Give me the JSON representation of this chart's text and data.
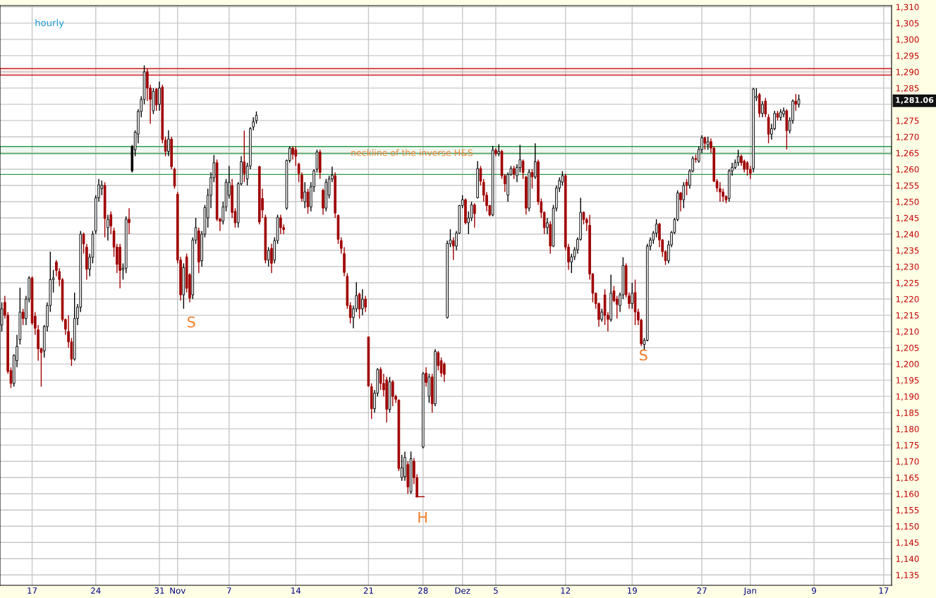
{
  "chart_data": {
    "type": "candlestick",
    "title": "hourly",
    "categories": [
      null,
      null,
      null,
      null,
      null,
      null,
      null,
      null,
      null,
      null,
      "17",
      null,
      null,
      null,
      null,
      null,
      null,
      null,
      null,
      null,
      null,
      null,
      null,
      null,
      null,
      null,
      null,
      null,
      null,
      null,
      null,
      "24",
      null,
      null,
      null,
      null,
      null,
      null,
      null,
      null,
      null,
      null,
      null,
      null,
      null,
      null,
      null,
      null,
      null,
      null,
      null,
      null,
      "31",
      null,
      null,
      null,
      null,
      null,
      "Nov",
      null,
      null,
      null,
      null,
      null,
      null,
      null,
      null,
      null,
      null,
      null,
      null,
      null,
      null,
      null,
      null,
      "7",
      null,
      null,
      null,
      null,
      null,
      null,
      null,
      null,
      null,
      null,
      null,
      null,
      null,
      null,
      null,
      null,
      null,
      null,
      null,
      null,
      null,
      "14",
      null,
      null,
      null,
      null,
      null,
      null,
      null,
      null,
      null,
      null,
      null,
      null,
      null,
      null,
      null,
      null,
      null,
      null,
      null,
      null,
      null,
      null,
      null,
      "21",
      null,
      null,
      null,
      null,
      null,
      null,
      null,
      null,
      null,
      null,
      null,
      null,
      null,
      null,
      null,
      null,
      null,
      "28",
      null,
      null,
      null,
      null,
      null,
      null,
      null,
      null,
      null,
      null,
      null,
      null,
      "Dez",
      null,
      null,
      null,
      null,
      null,
      null,
      null,
      null,
      null,
      null,
      "5",
      null,
      null,
      null,
      null,
      null,
      null,
      null,
      null,
      null,
      null,
      null,
      null,
      null,
      null,
      null,
      null,
      null,
      null,
      null,
      null,
      null,
      null,
      "12",
      null,
      null,
      null,
      null,
      null,
      null,
      null,
      null,
      null,
      null,
      null,
      null,
      null,
      null,
      null,
      null,
      null,
      null,
      null,
      null,
      null,
      "19",
      null,
      null,
      null,
      null,
      null,
      null,
      null,
      null,
      null,
      null,
      null,
      null,
      null,
      null,
      null,
      null,
      null,
      null,
      null,
      null,
      null,
      null,
      "27",
      null,
      null,
      null,
      null,
      null,
      null,
      null,
      null,
      null,
      null,
      null,
      null,
      null,
      null,
      null,
      "Jan",
      null,
      null,
      null,
      null,
      null,
      null,
      null,
      null,
      null,
      null,
      null,
      null,
      null,
      null,
      null,
      null,
      null,
      null,
      null,
      null,
      "9",
      null,
      null,
      null,
      null,
      null,
      null,
      null,
      null,
      null,
      null,
      null,
      null,
      null,
      null,
      null,
      null,
      null,
      null,
      null,
      null,
      null,
      null,
      "17",
      null,
      null
    ],
    "ohlc": [
      [
        1212,
        1219,
        1210,
        1217
      ],
      [
        1219,
        1221,
        1214,
        1215
      ],
      [
        1215,
        1216,
        1197,
        1197.7
      ],
      [
        1198,
        1199,
        1192.6,
        1194
      ],
      [
        1194,
        1203,
        1193,
        1202.6
      ],
      [
        1201,
        1209,
        1199,
        1205.4
      ],
      [
        1207.5,
        1223.5,
        1206,
        1216
      ],
      [
        1216,
        1217,
        1212,
        1214
      ],
      [
        1214,
        1221,
        1212,
        1220
      ],
      [
        1220,
        1227,
        1219,
        1226.5
      ],
      [
        1226.5,
        1227,
        1212,
        1212.6
      ],
      [
        1214.7,
        1216,
        1209,
        1211
      ],
      [
        1210.5,
        1212,
        1201,
        1204.7
      ],
      [
        1204.7,
        1205,
        1193,
        1203.5
      ],
      [
        1204,
        1212,
        1202,
        1211.5
      ],
      [
        1211.5,
        1219,
        1210,
        1218
      ],
      [
        1218,
        1234.6,
        1216,
        1226
      ],
      [
        1226,
        1229,
        1222,
        1226.5
      ],
      [
        1231.4,
        1232,
        1227,
        1228.8
      ],
      [
        1228.5,
        1229.5,
        1224,
        1226
      ],
      [
        1226,
        1226.5,
        1213,
        1213.7
      ],
      [
        1213.7,
        1214,
        1209,
        1210.7
      ],
      [
        1210,
        1215,
        1205,
        1206.8
      ],
      [
        1206.8,
        1208,
        1199.4,
        1201.5
      ],
      [
        1201.5,
        1222,
        1201,
        1214
      ],
      [
        1214,
        1218.5,
        1212,
        1217.5
      ],
      [
        1217.5,
        1241,
        1216,
        1240
      ],
      [
        1240,
        1240.5,
        1234,
        1237
      ],
      [
        1236,
        1237,
        1226,
        1229.2
      ],
      [
        1229.2,
        1234,
        1227,
        1232.9
      ],
      [
        1232.9,
        1241,
        1231,
        1240
      ],
      [
        1241,
        1252,
        1240,
        1251.2
      ],
      [
        1251.2,
        1257,
        1250,
        1255.2
      ],
      [
        1254,
        1256.5,
        1252,
        1255
      ],
      [
        1255,
        1256,
        1239,
        1244.8
      ],
      [
        1242,
        1246,
        1238,
        1244.5
      ],
      [
        1246,
        1247,
        1240,
        1242.5
      ],
      [
        1241,
        1242,
        1233,
        1236
      ],
      [
        1236,
        1237,
        1228,
        1230.7
      ],
      [
        1236,
        1237,
        1223.3,
        1228.8
      ],
      [
        1229,
        1231,
        1226,
        1229.5
      ],
      [
        1229.5,
        1245.5,
        1228,
        1244.6
      ],
      [
        1244.6,
        1248,
        1240,
        1243.5
      ],
      [
        1259.5,
        1267.5,
        1259,
        1267
      ],
      [
        1266,
        1272,
        1264,
        1271.4
      ],
      [
        1270.8,
        1278.5,
        1268,
        1277.8
      ],
      [
        1277.8,
        1282.5,
        1276,
        1281.5
      ],
      [
        1281.5,
        1292,
        1280,
        1290
      ],
      [
        1290,
        1291,
        1281,
        1285
      ],
      [
        1285,
        1286,
        1274,
        1281.5
      ],
      [
        1278,
        1285,
        1277,
        1284
      ],
      [
        1284.7,
        1285,
        1278,
        1279.8
      ],
      [
        1280,
        1287,
        1278,
        1285
      ],
      [
        1285.3,
        1286,
        1268,
        1269.1
      ],
      [
        1269,
        1270,
        1264,
        1265.5
      ],
      [
        1265.5,
        1272,
        1264,
        1269.3
      ],
      [
        1269.3,
        1270,
        1260,
        1260.8
      ],
      [
        1260,
        1260.5,
        1254,
        1254.8
      ],
      [
        1252.3,
        1253,
        1231,
        1232
      ],
      [
        1232,
        1233,
        1219.5,
        1221.3
      ],
      [
        1221.3,
        1231,
        1217,
        1229.7
      ],
      [
        1233,
        1234,
        1222,
        1223.3
      ],
      [
        1227.5,
        1228,
        1219,
        1220.3
      ],
      [
        1221.3,
        1239,
        1220,
        1238.2
      ],
      [
        1238.2,
        1245,
        1237,
        1242
      ],
      [
        1241,
        1242,
        1228,
        1231.4
      ],
      [
        1231.8,
        1241,
        1230,
        1240
      ],
      [
        1240,
        1249,
        1239,
        1248.2
      ],
      [
        1245,
        1254,
        1242,
        1252
      ],
      [
        1252,
        1259,
        1248,
        1257.4
      ],
      [
        1257.4,
        1264.4,
        1256,
        1262
      ],
      [
        1262,
        1263,
        1244,
        1244.6
      ],
      [
        1244.6,
        1245,
        1241,
        1244
      ],
      [
        1244,
        1250,
        1243,
        1248.4
      ],
      [
        1248.4,
        1257,
        1247,
        1256
      ],
      [
        1252,
        1261,
        1251,
        1256
      ],
      [
        1255,
        1257,
        1245,
        1246.7
      ],
      [
        1247,
        1248,
        1242,
        1243.5
      ],
      [
        1243.5,
        1256,
        1242,
        1255.5
      ],
      [
        1255.5,
        1264,
        1255,
        1262.3
      ],
      [
        1262.3,
        1271.9,
        1256,
        1258.7
      ],
      [
        1257,
        1262,
        1255,
        1261
      ],
      [
        1261,
        1273,
        1260,
        1272.5
      ],
      [
        1273,
        1276,
        1272,
        1274.6
      ],
      [
        1275,
        1277.8,
        1274,
        1276.6
      ],
      [
        1260.8,
        1261,
        1243,
        1243.7
      ],
      [
        1251,
        1254,
        1245,
        1247.4
      ],
      [
        1245.2,
        1246,
        1231,
        1232
      ],
      [
        1232,
        1236,
        1230,
        1235
      ],
      [
        1235.6,
        1237,
        1228,
        1231
      ],
      [
        1232,
        1239,
        1231,
        1238
      ],
      [
        1238,
        1246,
        1237,
        1245.2
      ],
      [
        1245,
        1246,
        1240,
        1242
      ],
      [
        1242,
        1243,
        1240,
        1241.4
      ],
      [
        1248,
        1263,
        1247.5,
        1262.7
      ],
      [
        1262.7,
        1267,
        1262,
        1266.5
      ],
      [
        1266.5,
        1267,
        1263,
        1264.6
      ],
      [
        1266,
        1267,
        1261,
        1264
      ],
      [
        1261.6,
        1262,
        1256,
        1258.7
      ],
      [
        1258.2,
        1259,
        1250,
        1251
      ],
      [
        1250,
        1256,
        1248,
        1253
      ],
      [
        1253,
        1254,
        1246.3,
        1248.4
      ],
      [
        1248.4,
        1256,
        1247,
        1254.6
      ],
      [
        1254.6,
        1260,
        1253,
        1259.5
      ],
      [
        1260,
        1266,
        1259,
        1265.3
      ],
      [
        1265.3,
        1266,
        1257,
        1259
      ],
      [
        1253.5,
        1254,
        1246,
        1248
      ],
      [
        1248,
        1257,
        1247,
        1256
      ],
      [
        1252,
        1258,
        1251,
        1257
      ],
      [
        1257,
        1260.8,
        1256,
        1258.2
      ],
      [
        1258,
        1259,
        1245,
        1246.5
      ],
      [
        1245.8,
        1246,
        1237,
        1238.4
      ],
      [
        1238,
        1239,
        1234,
        1235.6
      ],
      [
        1234,
        1236,
        1227,
        1228.2
      ],
      [
        1227,
        1228,
        1217,
        1218
      ],
      [
        1218,
        1219,
        1212.5,
        1214.3
      ],
      [
        1214.3,
        1218,
        1211,
        1217
      ],
      [
        1217,
        1225.2,
        1216,
        1221.1
      ],
      [
        1221.5,
        1222,
        1214,
        1216.9
      ],
      [
        1217,
        1223,
        1215,
        1220
      ],
      [
        1220,
        1221,
        1216,
        1217.5
      ],
      [
        1208.3,
        1208.5,
        1193,
        1193.2
      ],
      [
        1193,
        1194,
        1183,
        1186.2
      ],
      [
        1186.2,
        1192,
        1185,
        1191
      ],
      [
        1191,
        1198.7,
        1190,
        1198.3
      ],
      [
        1198.3,
        1199,
        1192,
        1194
      ],
      [
        1194,
        1197,
        1190,
        1192
      ],
      [
        1195.1,
        1196,
        1182,
        1186
      ],
      [
        1186,
        1196,
        1185,
        1194.5
      ],
      [
        1194.5,
        1195,
        1187,
        1190
      ],
      [
        1190,
        1190.5,
        1188,
        1189.1
      ],
      [
        1188.9,
        1189,
        1167,
        1167.8
      ],
      [
        1165,
        1172,
        1164,
        1168
      ],
      [
        1165.3,
        1173,
        1164,
        1171.2
      ],
      [
        1169,
        1170,
        1160,
        1162.1
      ],
      [
        1160.6,
        1173,
        1160,
        1170.8
      ],
      [
        1170,
        1171,
        1163,
        1165
      ],
      [
        1165,
        1166,
        1158.8,
        1159.1
      ],
      [
        1159.1,
        1159.1,
        1159.1,
        1159.1
      ],
      [
        1174.4,
        1197.5,
        1174,
        1197
      ],
      [
        1197.2,
        1199,
        1193,
        1194.3
      ],
      [
        1190,
        1197,
        1188,
        1196
      ],
      [
        1196,
        1197,
        1185,
        1187.7
      ],
      [
        1187.7,
        1204.6,
        1187,
        1203.9
      ],
      [
        1203.5,
        1204,
        1198,
        1199.5
      ],
      [
        1201,
        1202,
        1196,
        1197.2
      ],
      [
        1200,
        1200.5,
        1194.5,
        1196.8
      ],
      [
        1214.3,
        1238,
        1214,
        1237.1
      ],
      [
        1237,
        1241.5,
        1236,
        1238.2
      ],
      [
        1238,
        1239,
        1232,
        1236.3
      ],
      [
        1236.3,
        1241,
        1235,
        1240.3
      ],
      [
        1240.3,
        1249,
        1240,
        1248.8
      ],
      [
        1248.8,
        1252,
        1248,
        1250.6
      ],
      [
        1250.6,
        1251,
        1243,
        1243.5
      ],
      [
        1243.5,
        1247,
        1240,
        1245
      ],
      [
        1245,
        1250,
        1244,
        1249
      ],
      [
        1249,
        1249.5,
        1242,
        1246.3
      ],
      [
        1251.2,
        1262.5,
        1251,
        1260.2
      ],
      [
        1260.2,
        1261,
        1255,
        1256.3
      ],
      [
        1256,
        1257,
        1250,
        1252
      ],
      [
        1252,
        1253,
        1247,
        1248.8
      ],
      [
        1248.8,
        1249,
        1245.5,
        1245.9
      ],
      [
        1245.9,
        1267.2,
        1245.5,
        1265.9
      ],
      [
        1265.9,
        1266.5,
        1264,
        1264.8
      ],
      [
        1264.8,
        1267.7,
        1264,
        1265.5
      ],
      [
        1265.5,
        1266,
        1257,
        1258
      ],
      [
        1258,
        1258.5,
        1253,
        1255.5
      ],
      [
        1252,
        1259,
        1250,
        1258.4
      ],
      [
        1258.4,
        1261,
        1258,
        1260.2
      ],
      [
        1260.2,
        1261,
        1257,
        1258.5
      ],
      [
        1258,
        1261.5,
        1256,
        1260.6
      ],
      [
        1260.5,
        1267.5,
        1259,
        1262.9
      ],
      [
        1262.5,
        1263,
        1257,
        1259
      ],
      [
        1257.6,
        1258,
        1246,
        1248
      ],
      [
        1248,
        1260,
        1247,
        1259.1
      ],
      [
        1259,
        1260,
        1254,
        1257.6
      ],
      [
        1257.6,
        1268,
        1257,
        1262.3
      ],
      [
        1262.3,
        1263,
        1249,
        1250
      ],
      [
        1250,
        1251,
        1245,
        1246.7
      ],
      [
        1246.7,
        1247,
        1240,
        1242
      ],
      [
        1242,
        1245,
        1240,
        1243.5
      ],
      [
        1243,
        1244,
        1234,
        1236.3
      ],
      [
        1236.3,
        1249,
        1236,
        1248
      ],
      [
        1248,
        1255,
        1247,
        1254.2
      ],
      [
        1254.2,
        1257.5,
        1253,
        1256.5
      ],
      [
        1256,
        1259.4,
        1255,
        1258
      ],
      [
        1258,
        1258.5,
        1235,
        1236
      ],
      [
        1236,
        1237,
        1229,
        1231.4
      ],
      [
        1231.4,
        1234,
        1228,
        1233
      ],
      [
        1233,
        1236,
        1232,
        1235.2
      ],
      [
        1235.2,
        1239,
        1234,
        1238.4
      ],
      [
        1238.4,
        1251.2,
        1238,
        1246.7
      ],
      [
        1246.7,
        1247,
        1243,
        1244.5
      ],
      [
        1244.5,
        1245,
        1241,
        1243.5
      ],
      [
        1242.7,
        1246,
        1226,
        1227.7
      ],
      [
        1227.7,
        1228,
        1219,
        1221.8
      ],
      [
        1221.8,
        1222,
        1217,
        1218.6
      ],
      [
        1218.6,
        1219,
        1211.5,
        1213.7
      ],
      [
        1213.7,
        1217,
        1213,
        1216
      ],
      [
        1221.3,
        1223,
        1212,
        1215
      ],
      [
        1215,
        1216,
        1210,
        1213.7
      ],
      [
        1213.7,
        1227.5,
        1213,
        1221.8
      ],
      [
        1222.5,
        1224,
        1219,
        1219.5
      ],
      [
        1220,
        1221,
        1214,
        1218.3
      ],
      [
        1218,
        1222,
        1216,
        1221.3
      ],
      [
        1221.3,
        1232.9,
        1220,
        1230.3
      ],
      [
        1230.3,
        1231,
        1220.5,
        1221.3
      ],
      [
        1221,
        1222,
        1217,
        1218.6
      ],
      [
        1218.6,
        1225,
        1217,
        1221.8
      ],
      [
        1222,
        1226,
        1212,
        1216
      ],
      [
        1216,
        1217,
        1212,
        1213.5
      ],
      [
        1213.5,
        1214,
        1205.5,
        1206.2
      ],
      [
        1206,
        1208,
        1204.3,
        1207.3
      ],
      [
        1207.3,
        1237,
        1207,
        1236.3
      ],
      [
        1236.3,
        1239,
        1235,
        1238.2
      ],
      [
        1238.2,
        1241,
        1237,
        1240.3
      ],
      [
        1240.3,
        1244.6,
        1239,
        1243.1
      ],
      [
        1243.1,
        1243.5,
        1236,
        1238.2
      ],
      [
        1238.2,
        1238.5,
        1233,
        1234.6
      ],
      [
        1234.6,
        1235,
        1230.5,
        1231.8
      ],
      [
        1231.8,
        1238,
        1231,
        1236.7
      ],
      [
        1236.7,
        1241,
        1236,
        1240.5
      ],
      [
        1240.5,
        1245,
        1240,
        1244.5
      ],
      [
        1244.5,
        1253.5,
        1244,
        1252.7
      ],
      [
        1252.7,
        1253,
        1247,
        1250.6
      ],
      [
        1250.6,
        1256,
        1248,
        1255
      ],
      [
        1256,
        1257,
        1252,
        1255
      ],
      [
        1255,
        1260,
        1254,
        1259.5
      ],
      [
        1259.5,
        1264,
        1259,
        1263.3
      ],
      [
        1263.3,
        1264.5,
        1262,
        1263
      ],
      [
        1262.5,
        1267,
        1262,
        1266.1
      ],
      [
        1266.1,
        1270.5,
        1265,
        1269.7
      ],
      [
        1269.7,
        1270,
        1266,
        1268
      ],
      [
        1267.5,
        1270,
        1266,
        1268.5
      ],
      [
        1268.5,
        1269.5,
        1265,
        1266.5
      ],
      [
        1266.5,
        1267,
        1256,
        1256.3
      ],
      [
        1256.3,
        1257,
        1253,
        1254.2
      ],
      [
        1254,
        1256,
        1250,
        1253
      ],
      [
        1253,
        1254,
        1250,
        1251.6
      ],
      [
        1251.6,
        1252,
        1249.5,
        1250.5
      ],
      [
        1251,
        1260,
        1250,
        1259.5
      ],
      [
        1259.5,
        1262,
        1258,
        1260.5
      ],
      [
        1260.5,
        1263,
        1260,
        1262
      ],
      [
        1262,
        1266,
        1261,
        1264
      ],
      [
        1264,
        1264.5,
        1261,
        1262
      ],
      [
        1262.5,
        1263,
        1259,
        1260
      ],
      [
        1262,
        1262.5,
        1258,
        1260
      ],
      [
        1260,
        1261,
        1257,
        1258.7
      ],
      [
        1260.2,
        1285.1,
        1259,
        1284.7
      ],
      [
        1282,
        1285,
        1281,
        1282.5
      ],
      [
        1283,
        1283.5,
        1276,
        1277.2
      ],
      [
        1277.2,
        1281,
        1276,
        1280
      ],
      [
        1281,
        1282,
        1276,
        1277
      ],
      [
        1276,
        1277,
        1268,
        1270.8
      ],
      [
        1270.8,
        1274,
        1269.1,
        1272.5
      ],
      [
        1272.5,
        1278,
        1272,
        1277.2
      ],
      [
        1277.2,
        1278,
        1275,
        1276
      ],
      [
        1276,
        1278.5,
        1275,
        1277.6
      ],
      [
        1277,
        1279,
        1276,
        1278
      ],
      [
        1278,
        1278.5,
        1266.1,
        1271.9
      ],
      [
        1271.9,
        1276,
        1271,
        1275
      ],
      [
        1275,
        1281.5,
        1274,
        1281
      ],
      [
        1281,
        1283.2,
        1278,
        1280
      ],
      [
        1280,
        1283,
        1279,
        1281.5
      ],
      null,
      null,
      null,
      null,
      null,
      null,
      null,
      null,
      null,
      null,
      null,
      null,
      null,
      null,
      null,
      null,
      null,
      null,
      null,
      null,
      null,
      null,
      null,
      null,
      null,
      null,
      null,
      null,
      null,
      null
    ],
    "colors": [
      "#ffffff",
      "#a00000",
      "#a00000",
      "#a00000",
      "#ffffff",
      "#ffffff",
      "#ffffff",
      "#a00000",
      "#ffffff",
      "#ffffff",
      "#a00000",
      "#a00000",
      "#a00000",
      "#a00000",
      "#ffffff",
      "#ffffff",
      "#ffffff",
      "#ffffff",
      "#a00000",
      "#a00000",
      "#a00000",
      "#a00000",
      "#a00000",
      "#a00000",
      "#ffffff",
      "#ffffff",
      "#ffffff",
      "#a00000",
      "#a00000",
      "#ffffff",
      "#ffffff",
      "#ffffff",
      "#ffffff",
      "#ffffff",
      "#a00000",
      "#ffffff",
      "#a00000",
      "#a00000",
      "#a00000",
      "#a00000",
      "#ffffff",
      "#ffffff",
      "#a00000",
      "#000000",
      "#ffffff",
      "#ffffff",
      "#ffffff",
      "#ffffff",
      "#a00000",
      "#a00000",
      "#ffffff",
      "#a00000",
      "#ffffff",
      "#a00000",
      "#a00000",
      "#ffffff",
      "#a00000",
      "#a00000",
      "#a00000",
      "#a00000",
      "#ffffff",
      "#a00000",
      "#a00000",
      "#ffffff",
      "#ffffff",
      "#a00000",
      "#ffffff",
      "#ffffff",
      "#ffffff",
      "#ffffff",
      "#ffffff",
      "#a00000",
      "#a00000",
      "#ffffff",
      "#ffffff",
      "#ffffff",
      "#a00000",
      "#a00000",
      "#ffffff",
      "#ffffff",
      "#a00000",
      "#ffffff",
      "#ffffff",
      "#ffffff",
      "#ffffff",
      "#a00000",
      "#a00000",
      "#a00000",
      "#ffffff",
      "#a00000",
      "#ffffff",
      "#ffffff",
      "#a00000",
      "#a00000",
      "#ffffff",
      "#ffffff",
      "#a00000",
      "#a00000",
      "#a00000",
      "#a00000",
      "#ffffff",
      "#a00000",
      "#ffffff",
      "#ffffff",
      "#ffffff",
      "#a00000",
      "#a00000",
      "#ffffff",
      "#ffffff",
      "#ffffff",
      "#a00000",
      "#a00000",
      "#a00000",
      "#a00000",
      "#a00000",
      "#a00000",
      "#ffffff",
      "#ffffff",
      "#a00000",
      "#ffffff",
      "#a00000",
      "#a00000",
      "#a00000",
      "#ffffff",
      "#ffffff",
      "#a00000",
      "#a00000",
      "#a00000",
      "#ffffff",
      "#a00000",
      "#a00000",
      "#a00000",
      "#ffffff",
      "#ffffff",
      "#a00000",
      "#ffffff",
      "#a00000",
      "#a00000",
      "#a00000",
      "#ffffff",
      "#a00000",
      "#ffffff",
      "#a00000",
      "#ffffff",
      "#a00000",
      "#a00000",
      "#a00000",
      "#ffffff",
      "#ffffff",
      "#a00000",
      "#ffffff",
      "#ffffff",
      "#ffffff",
      "#a00000",
      "#ffffff",
      "#ffffff",
      "#a00000",
      "#ffffff",
      "#a00000",
      "#a00000",
      "#a00000",
      "#a00000",
      "#ffffff",
      "#a00000",
      "#ffffff",
      "#a00000",
      "#a00000",
      "#ffffff",
      "#ffffff",
      "#a00000",
      "#ffffff",
      "#ffffff",
      "#a00000",
      "#a00000",
      "#ffffff",
      "#a00000",
      "#ffffff",
      "#a00000",
      "#a00000",
      "#a00000",
      "#ffffff",
      "#a00000",
      "#ffffff",
      "#ffffff",
      "#ffffff",
      "#ffffff",
      "#a00000",
      "#a00000",
      "#ffffff",
      "#ffffff",
      "#ffffff",
      "#ffffff",
      "#a00000",
      "#a00000",
      "#a00000",
      "#a00000",
      "#a00000",
      "#a00000",
      "#ffffff",
      "#a00000",
      "#a00000",
      "#ffffff",
      "#a00000",
      "#a00000",
      "#ffffff",
      "#ffffff",
      "#a00000",
      "#a00000",
      "#ffffff",
      "#a00000",
      "#a00000",
      "#a00000",
      "#ffffff",
      "#ffffff",
      "#ffffff",
      "#ffffff",
      "#ffffff",
      "#a00000",
      "#a00000",
      "#a00000",
      "#ffffff",
      "#ffffff",
      "#ffffff",
      "#ffffff",
      "#a00000",
      "#ffffff",
      "#a00000",
      "#ffffff",
      "#ffffff",
      "#a00000",
      "#ffffff",
      "#ffffff",
      "#a00000",
      "#ffffff",
      "#a00000",
      "#a00000",
      "#a00000",
      "#a00000",
      "#a00000",
      "#a00000",
      "#ffffff",
      "#ffffff",
      "#ffffff",
      "#ffffff",
      "#a00000",
      "#a00000",
      "#a00000",
      "#a00000",
      "#ffffff",
      "#ffffff",
      "#a00000",
      "#ffffff",
      "#a00000",
      "#a00000",
      "#ffffff",
      "#ffffff",
      "#a00000",
      "#ffffff",
      "#ffffff",
      "#a00000",
      "#ffffff",
      "#ffffff",
      "#a00000",
      "#ffffff",
      null,
      null,
      null,
      null,
      null,
      null,
      null,
      null,
      null,
      null,
      null,
      null,
      null,
      null,
      null,
      null,
      null,
      null,
      null,
      null,
      null,
      null,
      null,
      null,
      null,
      null,
      null,
      null,
      null,
      null
    ],
    "ylim": [
      1131.8,
      1310.4
    ],
    "yticks": [
      {
        "value": 1135,
        "label": "1,135"
      },
      {
        "value": 1140,
        "label": "1,140"
      },
      {
        "value": 1145,
        "label": "1,145"
      },
      {
        "value": 1150,
        "label": "1,150"
      },
      {
        "value": 1155,
        "label": "1,155"
      },
      {
        "value": 1160,
        "label": "1,160"
      },
      {
        "value": 1165,
        "label": "1,165"
      },
      {
        "value": 1170,
        "label": "1,170"
      },
      {
        "value": 1175,
        "label": "1,175"
      },
      {
        "value": 1180,
        "label": "1,180"
      },
      {
        "value": 1185,
        "label": "1,185"
      },
      {
        "value": 1190,
        "label": "1,190"
      },
      {
        "value": 1195,
        "label": "1,195"
      },
      {
        "value": 1200,
        "label": "1,200"
      },
      {
        "value": 1205,
        "label": "1,205"
      },
      {
        "value": 1210,
        "label": "1,210"
      },
      {
        "value": 1215,
        "label": "1,215"
      },
      {
        "value": 1220,
        "label": "1,220"
      },
      {
        "value": 1225,
        "label": "1,225"
      },
      {
        "value": 1230,
        "label": "1,230"
      },
      {
        "value": 1235,
        "label": "1,235"
      },
      {
        "value": 1240,
        "label": "1,240"
      },
      {
        "value": 1245,
        "label": "1,245"
      },
      {
        "value": 1250,
        "label": "1,250"
      },
      {
        "value": 1255,
        "label": "1,255"
      },
      {
        "value": 1260,
        "label": "1,260"
      },
      {
        "value": 1265,
        "label": "1,265"
      },
      {
        "value": 1270,
        "label": "1,270"
      },
      {
        "value": 1275,
        "label": "1,275"
      },
      {
        "value": 1280,
        "label": null
      },
      {
        "value": 1285,
        "label": "1,285"
      },
      {
        "value": 1290,
        "label": "1,290"
      },
      {
        "value": 1295,
        "label": "1,295"
      },
      {
        "value": 1300,
        "label": "1,300"
      },
      {
        "value": 1305,
        "label": "1,305"
      },
      {
        "value": 1310,
        "label": "1,310"
      }
    ],
    "grid": true,
    "bands": [
      {
        "axis": "y",
        "from": 1289.0,
        "to": 1291.0,
        "color": "#cc2222"
      },
      {
        "axis": "y",
        "from": 1264.8,
        "to": 1267.0,
        "color": "#2e9e4a"
      }
    ],
    "ref_lines": [
      {
        "axis": "y",
        "value": 1258.4,
        "color": "#2e9e4a",
        "line_style": "solid"
      }
    ],
    "annotations": [
      "neckline of the inverse H&S",
      "S",
      "H",
      "S",
      "1,281.06"
    ]
  }
}
